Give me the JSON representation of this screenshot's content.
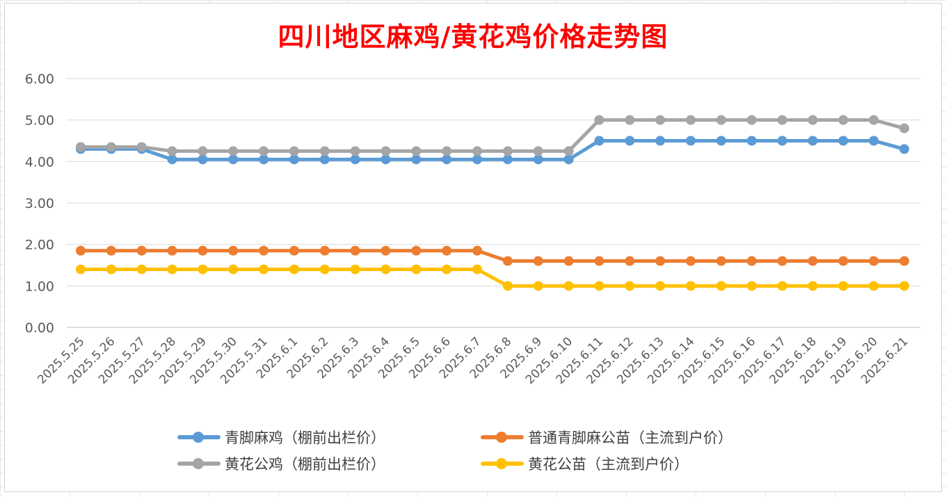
{
  "chart_data": {
    "type": "line",
    "title": "四川地区麻鸡/黄花鸡价格走势图",
    "categories": [
      "2025.5.25",
      "2025.5.26",
      "2025.5.27",
      "2025.5.28",
      "2025.5.29",
      "2025.5.30",
      "2025.5.31",
      "2025.6.1",
      "2025.6.2",
      "2025.6.3",
      "2025.6.4",
      "2025.6.5",
      "2025.6.6",
      "2025.6.7",
      "2025.6.8",
      "2025.6.9",
      "2025.6.10",
      "2025.6.11",
      "2025.6.12",
      "2025.6.13",
      "2025.6.14",
      "2025.6.15",
      "2025.6.16",
      "2025.6.17",
      "2025.6.18",
      "2025.6.19",
      "2025.6.20",
      "2025.6.21"
    ],
    "ylim": [
      0,
      6
    ],
    "yticks": [
      "0.00",
      "1.00",
      "2.00",
      "3.00",
      "4.00",
      "5.00",
      "6.00"
    ],
    "grid": true,
    "legend_position": "bottom",
    "series": [
      {
        "name": "青脚麻鸡（棚前出栏价）",
        "color": "#5b9bd5",
        "values": [
          4.3,
          4.3,
          4.3,
          4.05,
          4.05,
          4.05,
          4.05,
          4.05,
          4.05,
          4.05,
          4.05,
          4.05,
          4.05,
          4.05,
          4.05,
          4.05,
          4.05,
          4.5,
          4.5,
          4.5,
          4.5,
          4.5,
          4.5,
          4.5,
          4.5,
          4.5,
          4.5,
          4.3
        ]
      },
      {
        "name": "普通青脚麻公苗（主流到户价）",
        "color": "#ed7d31",
        "values": [
          1.85,
          1.85,
          1.85,
          1.85,
          1.85,
          1.85,
          1.85,
          1.85,
          1.85,
          1.85,
          1.85,
          1.85,
          1.85,
          1.85,
          1.6,
          1.6,
          1.6,
          1.6,
          1.6,
          1.6,
          1.6,
          1.6,
          1.6,
          1.6,
          1.6,
          1.6,
          1.6,
          1.6
        ]
      },
      {
        "name": "黄花公鸡（棚前出栏价）",
        "color": "#a5a5a5",
        "values": [
          4.35,
          4.35,
          4.35,
          4.25,
          4.25,
          4.25,
          4.25,
          4.25,
          4.25,
          4.25,
          4.25,
          4.25,
          4.25,
          4.25,
          4.25,
          4.25,
          4.25,
          5.0,
          5.0,
          5.0,
          5.0,
          5.0,
          5.0,
          5.0,
          5.0,
          5.0,
          5.0,
          4.8
        ]
      },
      {
        "name": "黄花公苗（主流到户价）",
        "color": "#ffc000",
        "values": [
          1.4,
          1.4,
          1.4,
          1.4,
          1.4,
          1.4,
          1.4,
          1.4,
          1.4,
          1.4,
          1.4,
          1.4,
          1.4,
          1.4,
          1.0,
          1.0,
          1.0,
          1.0,
          1.0,
          1.0,
          1.0,
          1.0,
          1.0,
          1.0,
          1.0,
          1.0,
          1.0,
          1.0
        ]
      }
    ]
  }
}
